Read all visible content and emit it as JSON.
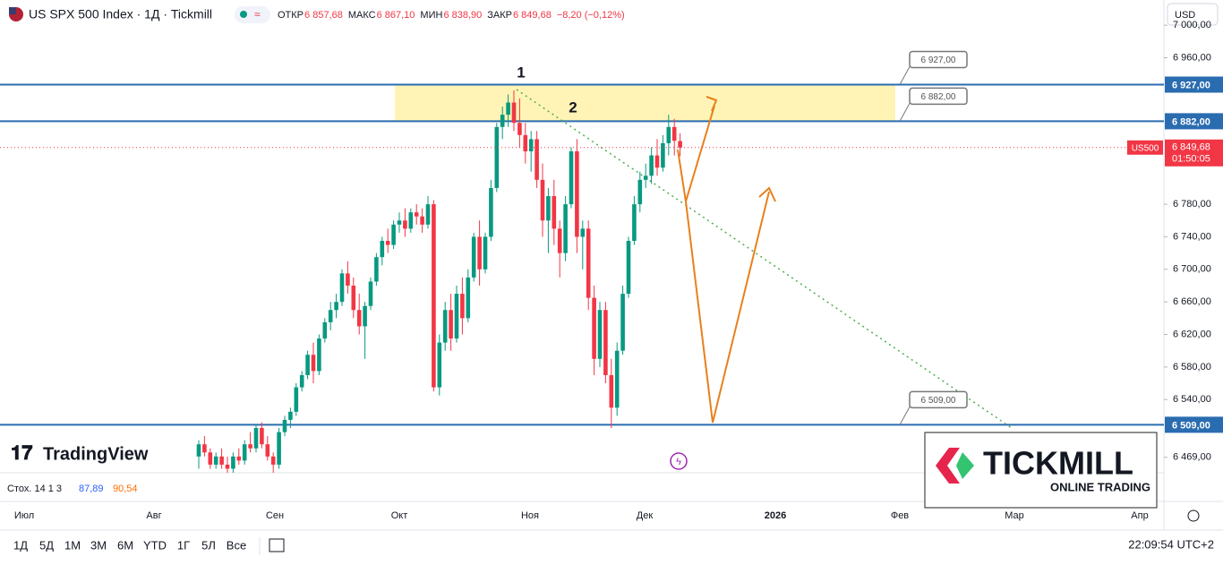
{
  "chart_data": {
    "type": "candlestick",
    "title": "US SPX 500 Index · 1Д · Tickmill",
    "ohlc_legend": [
      {
        "label": "ОТКР",
        "value": "6 857,68"
      },
      {
        "label": "МАКС",
        "value": "6 867,10"
      },
      {
        "label": "МИН",
        "value": "6 838,90"
      },
      {
        "label": "ЗАКР",
        "value": "6 849,68"
      }
    ],
    "change": "−8,20 (−0,12%)",
    "currency": "USD",
    "up_color": "#089981",
    "down_color": "#f23645",
    "candles": [
      [
        6470,
        6490,
        6455,
        6485
      ],
      [
        6485,
        6495,
        6470,
        6475
      ],
      [
        6475,
        6480,
        6455,
        6460
      ],
      [
        6460,
        6475,
        6455,
        6470
      ],
      [
        6470,
        6480,
        6455,
        6460
      ],
      [
        6460,
        6470,
        6440,
        6455
      ],
      [
        6455,
        6475,
        6450,
        6470
      ],
      [
        6470,
        6480,
        6460,
        6465
      ],
      [
        6465,
        6490,
        6460,
        6485
      ],
      [
        6485,
        6500,
        6475,
        6480
      ],
      [
        6480,
        6510,
        6475,
        6505
      ],
      [
        6505,
        6512,
        6480,
        6485
      ],
      [
        6485,
        6495,
        6465,
        6470
      ],
      [
        6470,
        6475,
        6450,
        6460
      ],
      [
        6460,
        6505,
        6455,
        6500
      ],
      [
        6500,
        6520,
        6495,
        6515
      ],
      [
        6515,
        6530,
        6505,
        6525
      ],
      [
        6525,
        6560,
        6520,
        6555
      ],
      [
        6555,
        6575,
        6550,
        6570
      ],
      [
        6570,
        6600,
        6565,
        6595
      ],
      [
        6595,
        6610,
        6560,
        6575
      ],
      [
        6575,
        6620,
        6570,
        6615
      ],
      [
        6615,
        6640,
        6610,
        6635
      ],
      [
        6635,
        6660,
        6625,
        6650
      ],
      [
        6650,
        6670,
        6640,
        6660
      ],
      [
        6660,
        6700,
        6655,
        6695
      ],
      [
        6695,
        6710,
        6670,
        6680
      ],
      [
        6680,
        6690,
        6640,
        6650
      ],
      [
        6650,
        6670,
        6620,
        6630
      ],
      [
        6630,
        6660,
        6590,
        6655
      ],
      [
        6655,
        6690,
        6650,
        6685
      ],
      [
        6685,
        6720,
        6680,
        6715
      ],
      [
        6715,
        6740,
        6705,
        6735
      ],
      [
        6735,
        6750,
        6720,
        6730
      ],
      [
        6730,
        6760,
        6725,
        6755
      ],
      [
        6755,
        6770,
        6745,
        6760
      ],
      [
        6760,
        6775,
        6740,
        6750
      ],
      [
        6750,
        6775,
        6745,
        6770
      ],
      [
        6770,
        6780,
        6755,
        6765
      ],
      [
        6765,
        6775,
        6745,
        6755
      ],
      [
        6755,
        6790,
        6750,
        6780
      ],
      [
        6780,
        6785,
        6550,
        6555
      ],
      [
        6555,
        6620,
        6545,
        6610
      ],
      [
        6610,
        6660,
        6600,
        6650
      ],
      [
        6650,
        6670,
        6600,
        6615
      ],
      [
        6615,
        6680,
        6610,
        6670
      ],
      [
        6670,
        6690,
        6620,
        6640
      ],
      [
        6640,
        6700,
        6635,
        6690
      ],
      [
        6690,
        6745,
        6685,
        6740
      ],
      [
        6740,
        6760,
        6680,
        6700
      ],
      [
        6700,
        6745,
        6695,
        6740
      ],
      [
        6740,
        6810,
        6735,
        6800
      ],
      [
        6800,
        6880,
        6795,
        6875
      ],
      [
        6875,
        6900,
        6860,
        6890
      ],
      [
        6890,
        6915,
        6875,
        6905
      ],
      [
        6905,
        6920,
        6870,
        6880
      ],
      [
        6880,
        6910,
        6850,
        6865
      ],
      [
        6865,
        6880,
        6830,
        6845
      ],
      [
        6845,
        6870,
        6820,
        6860
      ],
      [
        6860,
        6870,
        6800,
        6810
      ],
      [
        6810,
        6830,
        6740,
        6760
      ],
      [
        6760,
        6800,
        6720,
        6790
      ],
      [
        6790,
        6810,
        6730,
        6750
      ],
      [
        6750,
        6760,
        6690,
        6720
      ],
      [
        6720,
        6790,
        6710,
        6780
      ],
      [
        6780,
        6850,
        6775,
        6845
      ],
      [
        6845,
        6860,
        6720,
        6740
      ],
      [
        6740,
        6760,
        6700,
        6750
      ],
      [
        6750,
        6760,
        6650,
        6665
      ],
      [
        6665,
        6680,
        6570,
        6590
      ],
      [
        6590,
        6660,
        6580,
        6650
      ],
      [
        6650,
        6660,
        6560,
        6570
      ],
      [
        6570,
        6590,
        6505,
        6530
      ],
      [
        6530,
        6610,
        6520,
        6600
      ],
      [
        6600,
        6680,
        6595,
        6670
      ],
      [
        6670,
        6740,
        6665,
        6735
      ],
      [
        6735,
        6790,
        6730,
        6780
      ],
      [
        6780,
        6820,
        6770,
        6810
      ],
      [
        6810,
        6830,
        6800,
        6815
      ],
      [
        6815,
        6850,
        6805,
        6840
      ],
      [
        6840,
        6860,
        6815,
        6825
      ],
      [
        6825,
        6865,
        6820,
        6855
      ],
      [
        6855,
        6890,
        6840,
        6875
      ],
      [
        6875,
        6885,
        6840,
        6858
      ],
      [
        6857.68,
        6867.1,
        6838.9,
        6849.68
      ]
    ],
    "ylim": [
      6450,
      7031
    ],
    "yticks": [
      {
        "value": 7000,
        "label": "7 000,00"
      },
      {
        "value": 6960,
        "label": "6 960,00"
      },
      {
        "value": 6780,
        "label": "6 780,00"
      },
      {
        "value": 6740,
        "label": "6 740,00"
      },
      {
        "value": 6700,
        "label": "6 700,00"
      },
      {
        "value": 6660,
        "label": "6 660,00"
      },
      {
        "value": 6620,
        "label": "6 620,00"
      },
      {
        "value": 6580,
        "label": "6 580,00"
      },
      {
        "value": 6540,
        "label": "6 540,00"
      },
      {
        "value": 6469,
        "label": "6 469,00"
      }
    ],
    "levels": [
      {
        "value": 6927,
        "label": "6 927,00"
      },
      {
        "value": 6882,
        "label": "6 882,00"
      },
      {
        "value": 6509,
        "label": "6 509,00"
      }
    ],
    "last_price": {
      "value": 6849.68,
      "label": "6 849,68",
      "symbol": "US500",
      "countdown": "01:50:05"
    },
    "annotations": [
      "1",
      "2"
    ],
    "x_labels": [
      "Июл",
      "Авг",
      "Сен",
      "Окт",
      "Ноя",
      "Дек",
      "2026",
      "Фев",
      "Мар",
      "Апр"
    ],
    "indicator": {
      "name": "Стох. 14 1 3",
      "k": "87,89",
      "d": "90,54"
    },
    "ranges": [
      "1Д",
      "5Д",
      "1M",
      "3M",
      "6M",
      "YTD",
      "1Г",
      "5Л",
      "Все"
    ],
    "clock": "22:09:54 UTC+2",
    "logos": {
      "tradingview": "TradingView",
      "broker": "TICKMILL",
      "broker_tagline": "ONLINE TRADING"
    }
  }
}
